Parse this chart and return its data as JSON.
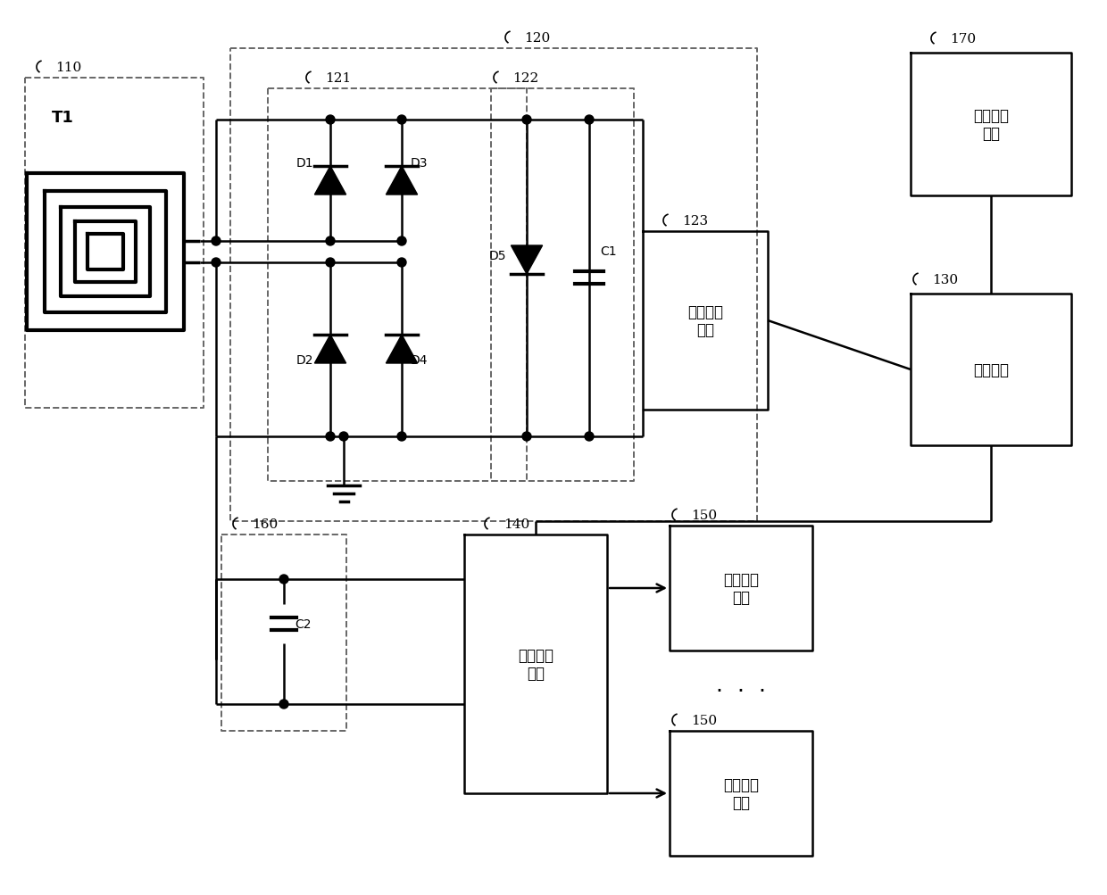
{
  "bg_color": "#ffffff",
  "lc": "#000000",
  "dc": "#666666",
  "lw_main": 1.8,
  "lw_thick": 2.5,
  "lw_dash": 1.4,
  "dot_r": 0.005,
  "labels": {
    "110": "110",
    "120": "120",
    "121": "121",
    "122": "122",
    "123": "123",
    "130": "130",
    "140": "140",
    "150": "150",
    "160": "160",
    "170": "170",
    "T1": "T1",
    "D1": "D1",
    "D2": "D2",
    "D3": "D3",
    "D4": "D4",
    "D5": "D5",
    "C1": "C1",
    "C2": "C2"
  },
  "zh": {
    "volt": "电压转换\n单元",
    "ctrl": "控制模块",
    "human": "人工交互\n模块",
    "select": "选通开关\n模块",
    "rf": "射频通信\n模块"
  }
}
